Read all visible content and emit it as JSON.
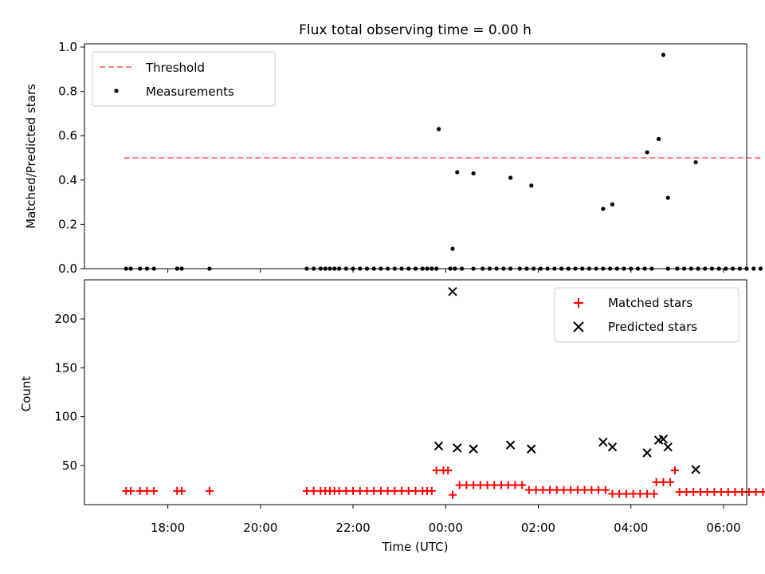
{
  "figure": {
    "title": "Flux total observing time = 0.00 h"
  },
  "chart_data": [
    {
      "type": "scatter",
      "ylabel": "Matched/Predicted stars",
      "xlabel": "",
      "xlim_hours": [
        16.2,
        30.5
      ],
      "ylim": [
        0,
        1.0
      ],
      "yticks": [
        0.0,
        0.2,
        0.4,
        0.6,
        0.8,
        1.0
      ],
      "ytick_labels": [
        "0.0",
        "0.2",
        "0.4",
        "0.6",
        "0.8",
        "1.0"
      ],
      "xticks_hours": [
        18,
        20,
        22,
        24,
        26,
        28,
        30
      ],
      "legend": {
        "placement": "upper-left",
        "entries": [
          "Threshold",
          "Measurements"
        ]
      },
      "threshold": {
        "name": "Threshold",
        "value": 0.5,
        "x_range_hours": [
          17.05,
          30.85
        ],
        "color": "#ff7f7f",
        "style": "dashed"
      },
      "measurements": {
        "name": "Measurements",
        "color": "#000000",
        "zero_times_hours": [
          17.1,
          17.2,
          17.4,
          17.55,
          17.7,
          18.2,
          18.3,
          18.9,
          21.0,
          21.15,
          21.3,
          21.4,
          21.5,
          21.6,
          21.7,
          21.85,
          22.0,
          22.15,
          22.3,
          22.45,
          22.6,
          22.75,
          22.9,
          23.05,
          23.2,
          23.35,
          23.5,
          23.6,
          23.7,
          23.8,
          24.1,
          24.2,
          24.35,
          24.6,
          24.8,
          24.95,
          25.1,
          25.25,
          25.4,
          25.6,
          25.75,
          25.9,
          26.05,
          26.2,
          26.35,
          26.5,
          26.65,
          26.8,
          26.95,
          27.1,
          27.25,
          27.4,
          27.55,
          27.7,
          27.85,
          28.0,
          28.15,
          28.3,
          28.45,
          28.8,
          29.0,
          29.15,
          29.3,
          29.45,
          29.6,
          29.75,
          29.9,
          30.05,
          30.2,
          30.35,
          30.5,
          30.65,
          30.8
        ],
        "nonzero_points": [
          {
            "x": 23.85,
            "y": 0.63
          },
          {
            "x": 24.15,
            "y": 0.09
          },
          {
            "x": 24.25,
            "y": 0.435
          },
          {
            "x": 24.6,
            "y": 0.43
          },
          {
            "x": 25.4,
            "y": 0.41
          },
          {
            "x": 25.85,
            "y": 0.375
          },
          {
            "x": 27.4,
            "y": 0.27
          },
          {
            "x": 27.6,
            "y": 0.29
          },
          {
            "x": 28.35,
            "y": 0.525
          },
          {
            "x": 28.6,
            "y": 0.585
          },
          {
            "x": 28.7,
            "y": 0.965
          },
          {
            "x": 28.8,
            "y": 0.32
          },
          {
            "x": 29.4,
            "y": 0.48
          }
        ]
      }
    },
    {
      "type": "scatter",
      "ylabel": "Count",
      "xlabel": "Time (UTC)",
      "xlim_hours": [
        16.2,
        30.5
      ],
      "ylim": [
        10,
        240
      ],
      "yticks": [
        50,
        100,
        150,
        200
      ],
      "ytick_labels": [
        "50",
        "100",
        "150",
        "200"
      ],
      "xticks_hours": [
        18,
        20,
        22,
        24,
        26,
        28,
        30
      ],
      "xtick_labels": [
        "18:00",
        "20:00",
        "22:00",
        "00:00",
        "02:00",
        "04:00",
        "06:00"
      ],
      "legend": {
        "placement": "upper-right",
        "entries": [
          "Matched stars",
          "Predicted stars"
        ]
      },
      "matched_series": {
        "name": "Matched stars",
        "color": "#ff0000",
        "marker": "plus",
        "segments": [
          {
            "value": 24,
            "x": [
              17.1,
              17.2,
              17.4,
              17.55,
              17.7,
              18.2,
              18.3,
              18.9,
              21.0,
              21.15,
              21.3,
              21.4,
              21.5,
              21.6,
              21.7,
              21.85,
              22.0,
              22.15,
              22.3,
              22.45,
              22.6,
              22.75,
              22.9,
              23.05,
              23.2,
              23.35,
              23.5,
              23.6,
              23.7
            ]
          },
          {
            "value": 45,
            "x": [
              23.8,
              23.95,
              24.05
            ]
          },
          {
            "value": 20,
            "x": [
              24.15
            ]
          },
          {
            "value": 30,
            "x": [
              24.3,
              24.45,
              24.6,
              24.75,
              24.9,
              25.05,
              25.2,
              25.35,
              25.5,
              25.65
            ]
          },
          {
            "value": 25,
            "x": [
              25.8,
              25.95,
              26.1,
              26.25,
              26.4,
              26.55,
              26.7,
              26.85,
              27.0,
              27.15,
              27.3,
              27.45
            ]
          },
          {
            "value": 21,
            "x": [
              27.6,
              27.75,
              27.9,
              28.05,
              28.2,
              28.35,
              28.5
            ]
          },
          {
            "value": 33,
            "x": [
              28.55,
              28.7,
              28.85
            ]
          },
          {
            "value": 45,
            "x": [
              28.95
            ]
          },
          {
            "value": 23,
            "x": [
              29.05,
              29.2,
              29.35,
              29.5,
              29.65,
              29.8,
              29.95,
              30.1,
              30.25,
              30.4,
              30.55,
              30.7,
              30.85
            ]
          }
        ]
      },
      "predicted_series": {
        "name": "Predicted stars",
        "color": "#000000",
        "marker": "x",
        "points": [
          {
            "x": 23.85,
            "y": 70
          },
          {
            "x": 24.15,
            "y": 228
          },
          {
            "x": 24.25,
            "y": 68
          },
          {
            "x": 24.6,
            "y": 67
          },
          {
            "x": 25.4,
            "y": 71
          },
          {
            "x": 25.85,
            "y": 67
          },
          {
            "x": 27.4,
            "y": 74
          },
          {
            "x": 27.6,
            "y": 69
          },
          {
            "x": 28.35,
            "y": 63
          },
          {
            "x": 28.6,
            "y": 76
          },
          {
            "x": 28.7,
            "y": 77
          },
          {
            "x": 28.8,
            "y": 69
          },
          {
            "x": 29.4,
            "y": 46
          }
        ]
      }
    }
  ]
}
